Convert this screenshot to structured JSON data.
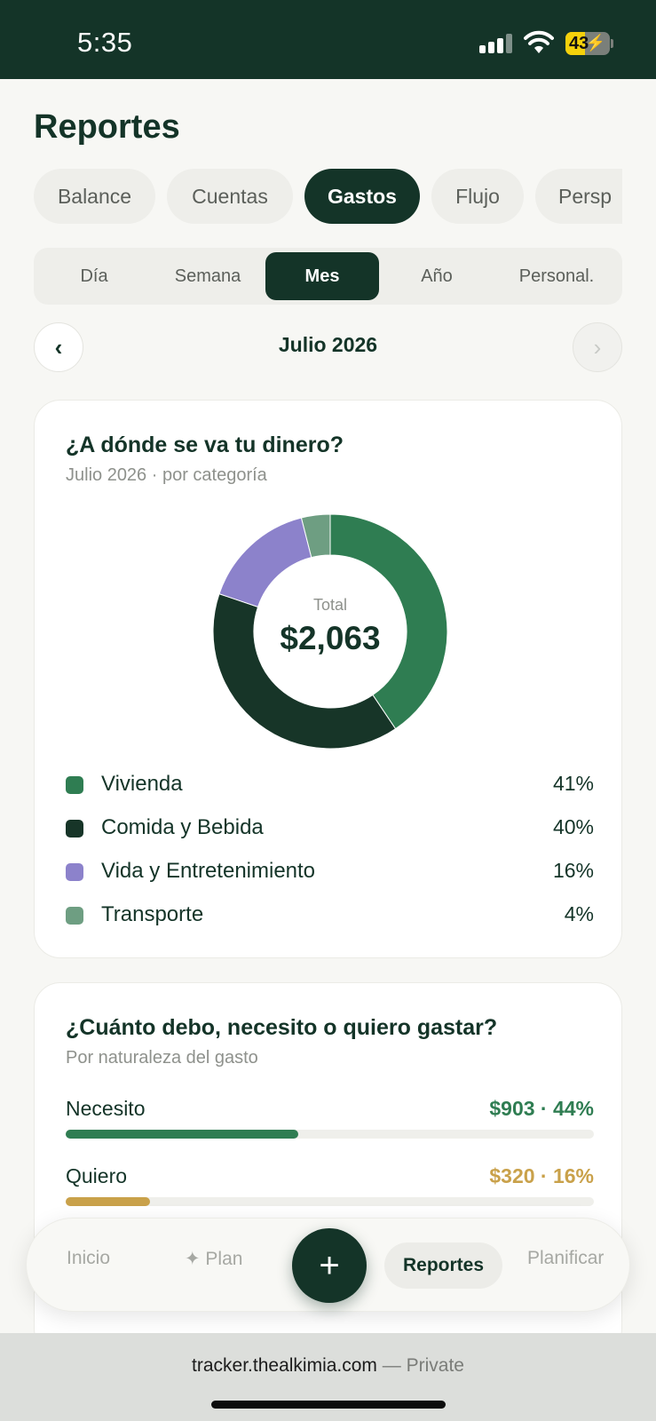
{
  "status": {
    "time": "5:35",
    "battery": "43",
    "battery_level": 0.43
  },
  "page": {
    "title": "Reportes"
  },
  "tabs": [
    {
      "label": "Balance",
      "active": false
    },
    {
      "label": "Cuentas",
      "active": false
    },
    {
      "label": "Gastos",
      "active": true
    },
    {
      "label": "Flujo",
      "active": false
    },
    {
      "label": "Persp",
      "active": false
    }
  ],
  "period": [
    {
      "label": "Día",
      "active": false
    },
    {
      "label": "Semana",
      "active": false
    },
    {
      "label": "Mes",
      "active": true
    },
    {
      "label": "Año",
      "active": false
    },
    {
      "label": "Personal.",
      "active": false
    }
  ],
  "date_nav": {
    "prev": "‹",
    "label": "Julio 2026",
    "next": "›"
  },
  "categories_card": {
    "title": "¿A dónde se va tu dinero?",
    "subtitle": "Julio 2026 · por categoría",
    "total_label": "Total",
    "total_value": "$2,063",
    "items": [
      {
        "label": "Vivienda",
        "pct_label": "41%",
        "value": 41,
        "color": "#2f7d52"
      },
      {
        "label": "Comida y Bebida",
        "pct_label": "40%",
        "value": 40,
        "color": "#173528"
      },
      {
        "label": "Vida y Entretenimiento",
        "pct_label": "16%",
        "value": 16,
        "color": "#8c82cb"
      },
      {
        "label": "Transporte",
        "pct_label": "4%",
        "value": 4,
        "color": "#6e9e82"
      }
    ]
  },
  "nature_card": {
    "title": "¿Cuánto debo, necesito o quiero gastar?",
    "subtitle": "Por naturaleza del gasto",
    "rows": [
      {
        "label": "Necesito",
        "value": "$903 · 44%",
        "fraction": 0.44,
        "color": "#2f7d52"
      },
      {
        "label": "Quiero",
        "value": "$320 · 16%",
        "fraction": 0.16,
        "color": "#c9a14a"
      }
    ]
  },
  "bottom_nav": {
    "inicio": "Inicio",
    "plan": "✦ Plan",
    "fab": "+",
    "reportes": "Reportes",
    "planificar": "Planificar"
  },
  "browser": {
    "domain": "tracker.thealkimia.com",
    "suffix": "— Private"
  }
}
